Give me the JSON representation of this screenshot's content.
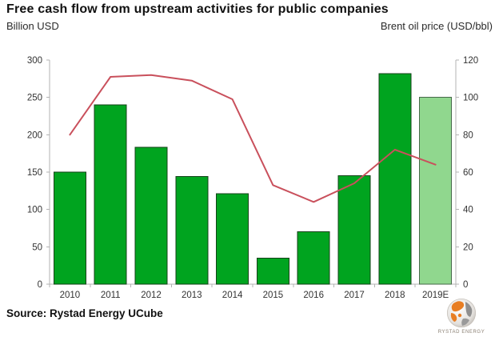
{
  "header": {
    "title": "Free cash flow from upstream activities for public companies",
    "left_axis_title": "Billion USD",
    "right_axis_title": "Brent oil price (USD/bbl)"
  },
  "chart_data": {
    "type": "bar",
    "subtype": "bar+line combo, dual axis",
    "title": "Free cash flow from upstream activities for public companies",
    "categories": [
      "2010",
      "2011",
      "2012",
      "2013",
      "2014",
      "2015",
      "2016",
      "2017",
      "2018",
      "2019E"
    ],
    "series": [
      {
        "name": "Free cash flow (Billion USD)",
        "type": "bar",
        "axis": "left",
        "values": [
          150,
          240,
          183,
          144,
          121,
          35,
          70,
          145,
          282,
          250
        ]
      },
      {
        "name": "Brent oil price (USD/bbl)",
        "type": "line",
        "axis": "right",
        "values": [
          80,
          111,
          112,
          109,
          99,
          53,
          44,
          54,
          72,
          64
        ]
      }
    ],
    "left_axis": {
      "label": "Billion USD",
      "min": 0,
      "max": 300,
      "step": 50
    },
    "right_axis": {
      "label": "Brent oil price (USD/bbl)",
      "min": 0,
      "max": 120,
      "step": 20
    },
    "estimate_index": 9,
    "grid": false,
    "legend": "none",
    "colors": {
      "bar": "#00A41F",
      "bar_border": "#14421A",
      "bar_estimate": "#90D78E",
      "bar_estimate_border": "#47684A",
      "line": "#C9505C",
      "axis": "#B3B3B3",
      "tick_label": "#333333"
    }
  },
  "footer": {
    "source": "Source: Rystad Energy UCube",
    "logo_text": "RYSTAD ENERGY"
  }
}
